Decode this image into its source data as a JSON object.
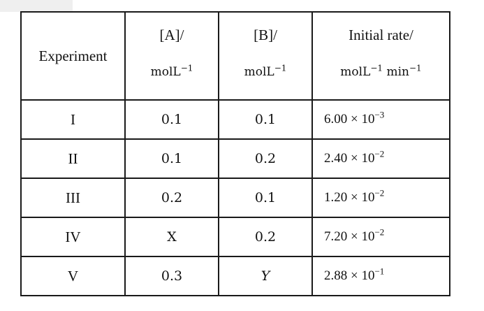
{
  "table": {
    "headers": {
      "experiment": "Experiment",
      "a_top": "[A]/",
      "a_unit": "molL",
      "a_unit_exp": "−1",
      "b_top": "[B]/",
      "b_unit": "molL",
      "b_unit_exp": "−1",
      "rate_top": "Initial rate/",
      "rate_unit_1": "molL",
      "rate_unit_1_exp": "−1",
      "rate_unit_2": " min",
      "rate_unit_2_exp": "−1"
    },
    "rows": [
      {
        "experiment": "I",
        "a": "0.1",
        "b": "0.1",
        "rate_mantissa": "6.00 × 10",
        "rate_exp": "−3"
      },
      {
        "experiment": "II",
        "a": "0.1",
        "b": "0.2",
        "rate_mantissa": "2.40 × 10",
        "rate_exp": "−2"
      },
      {
        "experiment": "III",
        "a": "0.2",
        "b": "0.1",
        "rate_mantissa": "1.20 × 10",
        "rate_exp": "−2"
      },
      {
        "experiment": "IV",
        "a": "X",
        "b": "0.2",
        "rate_mantissa": "7.20 × 10",
        "rate_exp": "−2"
      },
      {
        "experiment": "V",
        "a": "0.3",
        "b": "Y",
        "rate_mantissa": "2.88 × 10",
        "rate_exp": "−1"
      }
    ]
  }
}
